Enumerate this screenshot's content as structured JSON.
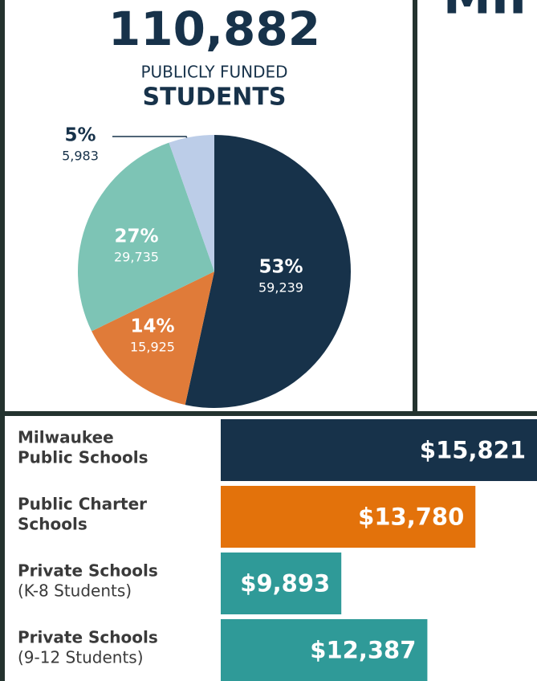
{
  "header_fragment": "MII",
  "chart_data": [
    {
      "type": "pie",
      "title": "110,882",
      "subtitle": [
        "PUBLICLY FUNDED",
        "STUDENTS"
      ],
      "values": [
        59239,
        15925,
        29735,
        5983
      ],
      "value_labels": [
        "59,239",
        "15,925",
        "29,735",
        "5,983"
      ],
      "shares": [
        53,
        14,
        27,
        5
      ],
      "share_labels": [
        "53%",
        "14%",
        "27%",
        "5%"
      ],
      "colors": [
        "#17324a",
        "#e07b39",
        "#7dc4b5",
        "#bccde8"
      ]
    },
    {
      "type": "barh",
      "categories": [
        [
          "Milwaukee",
          "Public Schools"
        ],
        [
          "Public Charter",
          "Schools"
        ],
        [
          "Private Schools",
          "(K-8 Students)"
        ],
        [
          "Private Schools",
          "(9-12 Students)"
        ]
      ],
      "values": [
        15821,
        13780,
        9893,
        12387
      ],
      "value_labels": [
        "$15,821",
        "$13,780",
        "$9,893",
        "$12,387"
      ],
      "colors": [
        "#17324a",
        "#e3720b",
        "#2f9a98",
        "#2f9a98"
      ]
    }
  ]
}
